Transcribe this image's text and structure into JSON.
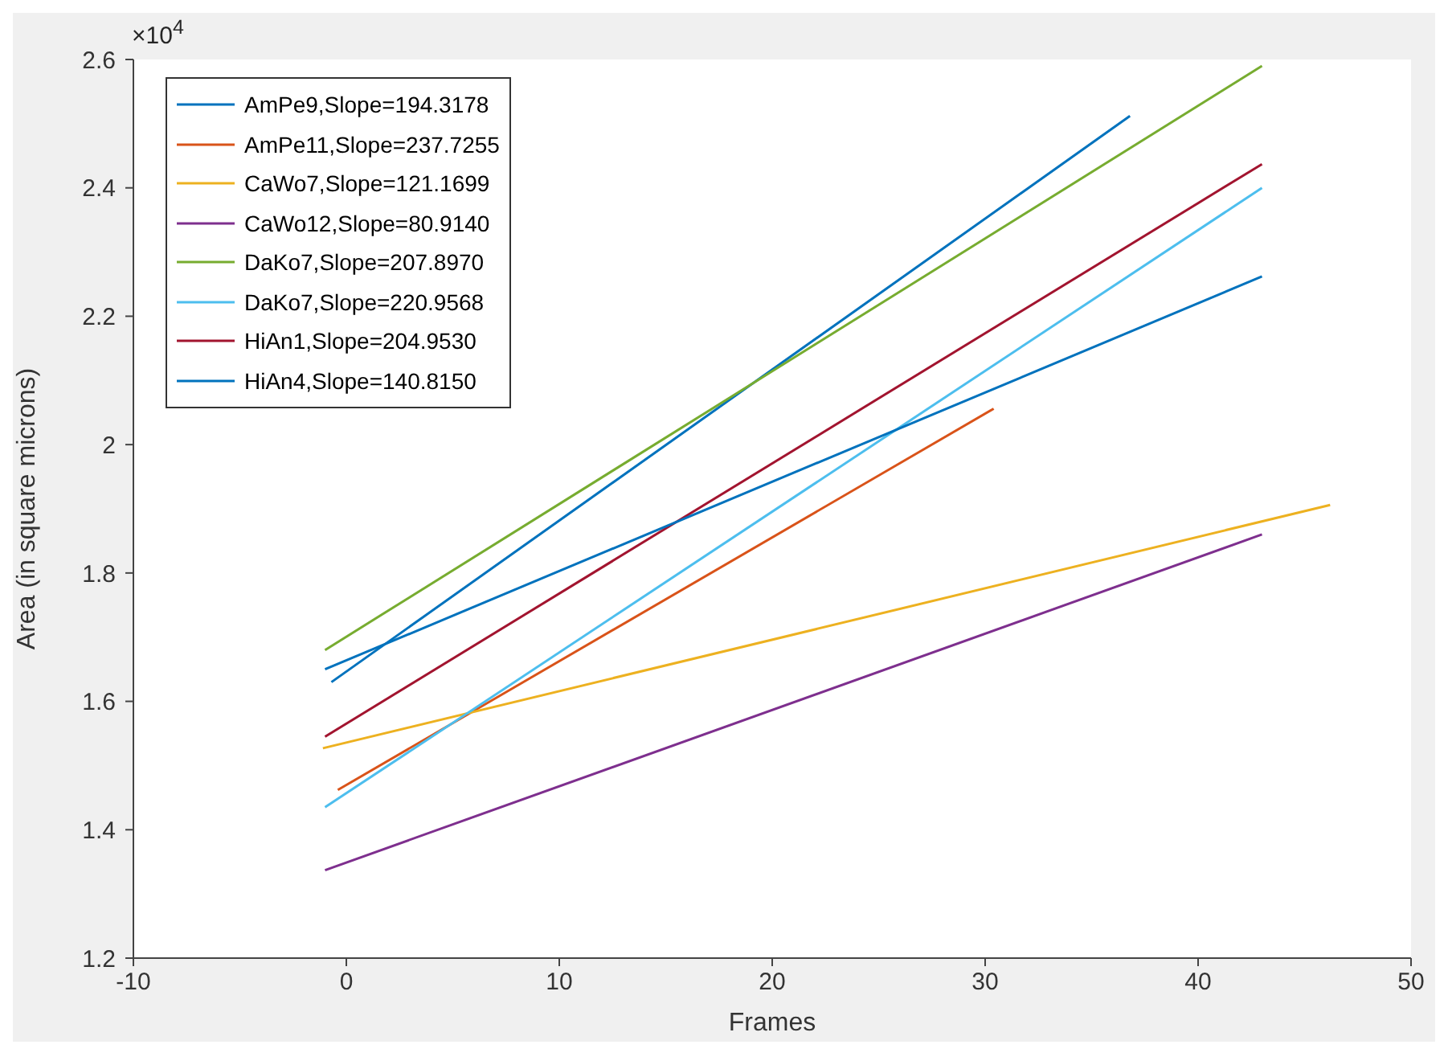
{
  "chart_data": {
    "type": "line",
    "xlabel": "Frames",
    "ylabel": "Area (in square microns)",
    "annotations": [
      "×10$^{4}$"
    ],
    "xlim": [
      -10,
      50
    ],
    "xticks": [
      -10,
      0,
      10,
      20,
      30,
      40,
      50
    ],
    "ylim": [
      1.2,
      2.6
    ],
    "yticks": [
      1.2,
      1.4,
      1.6,
      1.8,
      2,
      2.2,
      2.4,
      2.6
    ],
    "grid": false,
    "legend": "top left",
    "marker": "none",
    "line_style": "solid",
    "series": [
      {
        "name": "AmPe9,Slope=194.3178",
        "color": "#0072bd",
        "x": [
          -0.7,
          36.8
        ],
        "values": [
          1.63,
          2.512
        ]
      },
      {
        "name": "AmPe11,Slope=237.7255",
        "color": "#d95319",
        "x": [
          -0.4,
          30.4
        ],
        "values": [
          1.462,
          2.056
        ]
      },
      {
        "name": "CaWo7,Slope=121.1699",
        "color": "#edb120",
        "x": [
          -1.1,
          46.2
        ],
        "values": [
          1.527,
          1.906
        ]
      },
      {
        "name": "CaWo12,Slope=80.9140",
        "color": "#7e2f8e",
        "x": [
          -1,
          43
        ],
        "values": [
          1.337,
          1.86
        ]
      },
      {
        "name": "DaKo7,Slope=207.8970",
        "color": "#77ac30",
        "x": [
          -1,
          43
        ],
        "values": [
          1.68,
          2.59
        ]
      },
      {
        "name": "DaKo7,Slope=220.9568",
        "color": "#4dbeee",
        "x": [
          -1,
          43
        ],
        "values": [
          1.435,
          2.4
        ]
      },
      {
        "name": "HiAn1,Slope=204.9530",
        "color": "#a2142f",
        "x": [
          -1,
          43
        ],
        "values": [
          1.545,
          2.437
        ]
      },
      {
        "name": "HiAn4,Slope=140.8150",
        "color": "#0072bd",
        "x": [
          -1,
          43
        ],
        "values": [
          1.65,
          2.262
        ]
      }
    ]
  }
}
